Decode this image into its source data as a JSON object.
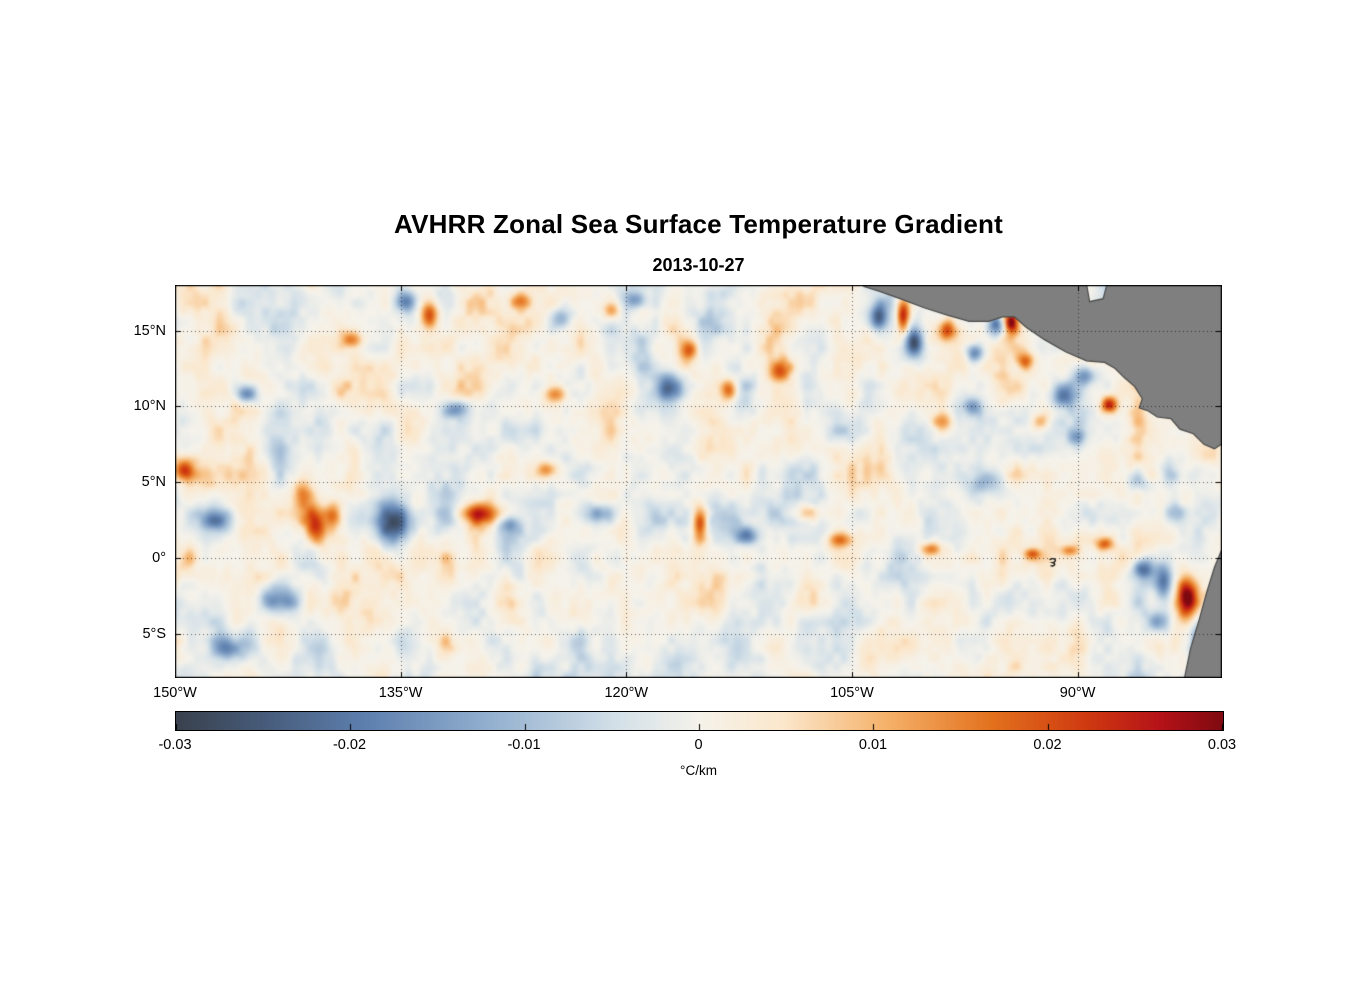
{
  "chart_data": {
    "type": "heatmap",
    "title": "AVHRR Zonal Sea Surface Temperature Gradient",
    "subtitle": "2013-10-27",
    "x_axis": {
      "range": [
        -150,
        -80.4
      ],
      "ticks": [
        {
          "value": -150,
          "label": "150°W"
        },
        {
          "value": -135,
          "label": "135°W"
        },
        {
          "value": -120,
          "label": "120°W"
        },
        {
          "value": -105,
          "label": "105°W"
        },
        {
          "value": -90,
          "label": "90°W"
        }
      ]
    },
    "y_axis": {
      "range": [
        -7.9,
        18
      ],
      "ticks": [
        {
          "value": 15,
          "label": "15°N"
        },
        {
          "value": 10,
          "label": "10°N"
        },
        {
          "value": 5,
          "label": "5°N"
        },
        {
          "value": 0,
          "label": "0°"
        },
        {
          "value": -5,
          "label": "5°S"
        }
      ]
    },
    "grid": "dotted",
    "colorbar": {
      "label": "°C/km",
      "range": [
        -0.03,
        0.03
      ],
      "ticks": [
        {
          "value": -0.03,
          "label": "-0.03"
        },
        {
          "value": -0.02,
          "label": "-0.02"
        },
        {
          "value": -0.01,
          "label": "-0.01"
        },
        {
          "value": 0,
          "label": "0"
        },
        {
          "value": 0.01,
          "label": "0.01"
        },
        {
          "value": 0.02,
          "label": "0.02"
        },
        {
          "value": 0.03,
          "label": "0.03"
        }
      ],
      "colormap_stops": [
        [
          0.0,
          "#39414d"
        ],
        [
          0.08,
          "#465a78"
        ],
        [
          0.18,
          "#5d7fae"
        ],
        [
          0.3,
          "#93b0cf"
        ],
        [
          0.42,
          "#d3e0e8"
        ],
        [
          0.5,
          "#f5f2ea"
        ],
        [
          0.58,
          "#fbe7cc"
        ],
        [
          0.68,
          "#f5b169"
        ],
        [
          0.78,
          "#e2711d"
        ],
        [
          0.87,
          "#cf3a10"
        ],
        [
          0.94,
          "#b51218"
        ],
        [
          1.0,
          "#7f0a10"
        ]
      ]
    },
    "field": {
      "units": "°C/km",
      "noise_amplitude": 0.013,
      "noise_sharpness": 1.25,
      "noise_octaves": [
        [
          2.2,
          2.8,
          1.0
        ],
        [
          1.0,
          1.4,
          0.55
        ],
        [
          0.5,
          0.6,
          0.3
        ]
      ],
      "features_schema": [
        "lon",
        "lat",
        "sigma_lon_deg",
        "sigma_lat_deg",
        "amplitude_C_per_km"
      ],
      "features": [
        [
          -149.4,
          5.8,
          0.5,
          0.5,
          0.022
        ],
        [
          -147.2,
          2.5,
          0.8,
          0.5,
          -0.016
        ],
        [
          -145.2,
          10.8,
          0.5,
          0.4,
          -0.018
        ],
        [
          -143.0,
          -2.7,
          0.9,
          0.6,
          -0.015
        ],
        [
          -146.4,
          -6.0,
          0.8,
          0.5,
          -0.013
        ],
        [
          -141.6,
          4.3,
          0.5,
          0.7,
          0.015
        ],
        [
          -140.6,
          2.0,
          0.5,
          0.9,
          0.02
        ],
        [
          -139.5,
          2.8,
          0.4,
          0.6,
          0.016
        ],
        [
          -138.3,
          14.4,
          0.5,
          0.4,
          0.013
        ],
        [
          -135.3,
          2.3,
          0.9,
          1.0,
          -0.027
        ],
        [
          -134.6,
          16.9,
          0.5,
          0.5,
          -0.018
        ],
        [
          -133.1,
          16.1,
          0.4,
          0.7,
          0.021
        ],
        [
          -131.3,
          9.8,
          0.6,
          0.4,
          -0.016
        ],
        [
          -129.6,
          2.9,
          0.9,
          0.5,
          0.021
        ],
        [
          -127.8,
          2.2,
          0.5,
          0.4,
          -0.013
        ],
        [
          -127.0,
          16.9,
          0.5,
          0.4,
          0.016
        ],
        [
          -125.3,
          5.8,
          0.5,
          0.4,
          0.015
        ],
        [
          -124.6,
          10.8,
          0.5,
          0.4,
          0.014
        ],
        [
          -124.3,
          15.7,
          0.5,
          0.5,
          -0.015
        ],
        [
          -121.8,
          2.9,
          0.7,
          0.5,
          -0.019
        ],
        [
          -121.0,
          16.4,
          0.4,
          0.5,
          0.016
        ],
        [
          -119.4,
          17.0,
          0.5,
          0.4,
          -0.016
        ],
        [
          -117.2,
          11.2,
          0.6,
          0.6,
          -0.02
        ],
        [
          -115.8,
          13.7,
          0.4,
          0.5,
          0.017
        ],
        [
          -115.1,
          2.2,
          0.35,
          0.9,
          0.022
        ],
        [
          -113.2,
          11.1,
          0.4,
          0.5,
          0.018
        ],
        [
          -112.0,
          1.5,
          0.6,
          0.4,
          -0.014
        ],
        [
          -109.8,
          12.4,
          0.5,
          0.5,
          0.019
        ],
        [
          -108.0,
          3.0,
          0.5,
          0.4,
          0.012
        ],
        [
          -105.8,
          1.2,
          0.6,
          0.35,
          0.018
        ],
        [
          -103.2,
          15.8,
          0.4,
          0.6,
          -0.024
        ],
        [
          -101.6,
          16.0,
          0.3,
          0.8,
          0.028
        ],
        [
          -100.8,
          14.2,
          0.4,
          0.6,
          -0.022
        ],
        [
          -99.8,
          0.6,
          0.5,
          0.3,
          0.016
        ],
        [
          -98.7,
          15.0,
          0.4,
          0.5,
          0.021
        ],
        [
          -96.8,
          13.5,
          0.4,
          0.4,
          -0.018
        ],
        [
          -95.4,
          15.3,
          0.4,
          0.5,
          -0.025
        ],
        [
          -94.4,
          15.5,
          0.3,
          0.5,
          0.027
        ],
        [
          -93.5,
          13.0,
          0.4,
          0.4,
          0.018
        ],
        [
          -93.0,
          0.3,
          0.4,
          0.25,
          0.015
        ],
        [
          -91.0,
          10.7,
          0.5,
          0.5,
          -0.019
        ],
        [
          -90.5,
          0.5,
          0.4,
          0.25,
          0.014
        ],
        [
          -89.5,
          12.0,
          0.5,
          0.4,
          -0.016
        ],
        [
          -88.2,
          0.9,
          0.4,
          0.3,
          0.016
        ],
        [
          -87.9,
          10.1,
          0.4,
          0.4,
          0.026
        ],
        [
          -85.6,
          -0.7,
          0.5,
          0.5,
          -0.024
        ],
        [
          -84.3,
          -1.5,
          0.4,
          0.8,
          -0.02
        ],
        [
          -82.7,
          -2.6,
          0.5,
          0.9,
          0.031
        ],
        [
          -84.6,
          -4.2,
          0.5,
          0.5,
          -0.016
        ],
        [
          -81.9,
          -5.8,
          0.35,
          0.9,
          -0.024
        ],
        [
          -96.0,
          5.0,
          0.8,
          0.6,
          -0.012
        ],
        [
          -99.0,
          9.0,
          0.5,
          0.4,
          0.014
        ],
        [
          -97.0,
          10.0,
          0.4,
          0.4,
          -0.013
        ],
        [
          -92.5,
          9.0,
          0.4,
          0.4,
          0.013
        ],
        [
          -90.0,
          8.0,
          0.4,
          0.4,
          -0.012
        ],
        [
          -86.0,
          5.0,
          0.5,
          0.5,
          -0.012
        ],
        [
          -83.5,
          3.0,
          0.5,
          0.5,
          -0.013
        ],
        [
          -83.0,
          9.5,
          0.4,
          0.4,
          0.014
        ]
      ]
    },
    "land": {
      "color": "#7f7f7f",
      "edge_color": "#4a4a4a",
      "polygons": [
        [
          [
            -104.9,
            18.6
          ],
          [
            -104.2,
            17.9
          ],
          [
            -103.2,
            17.6
          ],
          [
            -101.8,
            17.1
          ],
          [
            -100.2,
            16.5
          ],
          [
            -98.6,
            16.0
          ],
          [
            -97.2,
            15.6
          ],
          [
            -95.9,
            15.6
          ],
          [
            -95.0,
            15.9
          ],
          [
            -94.2,
            15.9
          ],
          [
            -93.4,
            15.2
          ],
          [
            -92.2,
            14.4
          ],
          [
            -90.8,
            13.6
          ],
          [
            -89.4,
            13.0
          ],
          [
            -88.2,
            12.9
          ],
          [
            -87.5,
            12.5
          ],
          [
            -86.9,
            11.9
          ],
          [
            -86.2,
            11.3
          ],
          [
            -85.7,
            10.5
          ],
          [
            -85.9,
            9.9
          ],
          [
            -85.3,
            9.7
          ],
          [
            -84.7,
            9.3
          ],
          [
            -83.8,
            9.2
          ],
          [
            -83.2,
            8.5
          ],
          [
            -82.3,
            8.2
          ],
          [
            -81.6,
            7.5
          ],
          [
            -80.9,
            7.2
          ],
          [
            -80.3,
            7.6
          ],
          [
            -79.9,
            8.3
          ],
          [
            -79.4,
            8.6
          ],
          [
            -78.9,
            7.9
          ],
          [
            -78.4,
            7.0
          ],
          [
            -78.0,
            6.5
          ],
          [
            -78.0,
            18.6
          ],
          [
            -87.9,
            18.6
          ],
          [
            -88.3,
            17.1
          ],
          [
            -89.2,
            16.9
          ],
          [
            -89.5,
            18.6
          ]
        ],
        [
          [
            -79.8,
            1.5
          ],
          [
            -80.4,
            0.6
          ],
          [
            -80.9,
            -0.6
          ],
          [
            -81.4,
            -2.2
          ],
          [
            -81.9,
            -4.0
          ],
          [
            -82.5,
            -6.0
          ],
          [
            -83.0,
            -8.4
          ],
          [
            -78.0,
            -8.4
          ],
          [
            -78.0,
            1.5
          ]
        ]
      ]
    },
    "islands": {
      "galapagos_lonlat": [
        -91.6,
        -0.3
      ]
    }
  }
}
